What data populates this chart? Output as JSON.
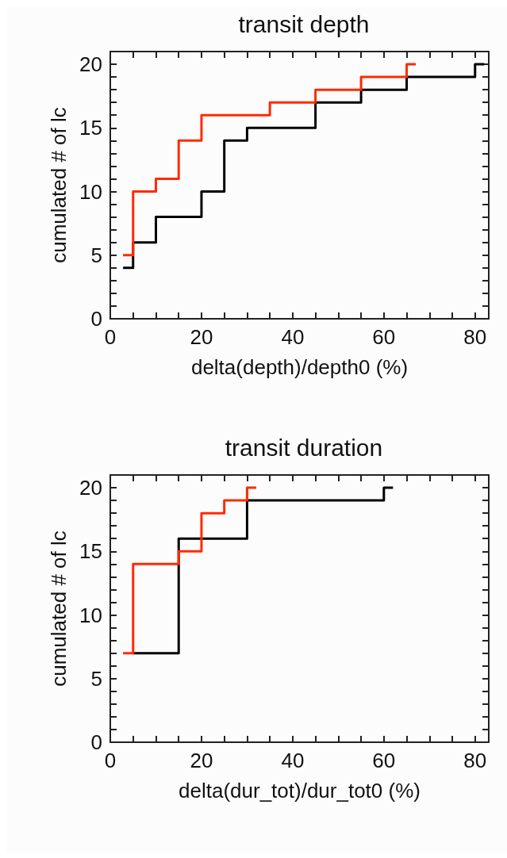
{
  "chart_data": [
    {
      "type": "step",
      "title": "transit depth",
      "xlabel": "delta(depth)/depth0 (%)",
      "ylabel": "cumulated # of lc",
      "xlim": [
        0,
        83
      ],
      "ylim": [
        0,
        21
      ],
      "xticks": [
        0,
        {
          "value": 5,
          "label": null
        },
        {
          "value": 10,
          "label": null
        },
        {
          "value": 15,
          "label": null
        },
        20,
        {
          "value": 25,
          "label": null
        },
        {
          "value": 30,
          "label": null
        },
        {
          "value": 35,
          "label": null
        },
        40,
        {
          "value": 45,
          "label": null
        },
        {
          "value": 50,
          "label": null
        },
        {
          "value": 55,
          "label": null
        },
        60,
        {
          "value": 65,
          "label": null
        },
        {
          "value": 70,
          "label": null
        },
        {
          "value": 75,
          "label": null
        },
        80
      ],
      "yticks": [
        0,
        {
          "value": 1,
          "label": null
        },
        {
          "value": 2,
          "label": null
        },
        {
          "value": 3,
          "label": null
        },
        {
          "value": 4,
          "label": null
        },
        5,
        {
          "value": 6,
          "label": null
        },
        {
          "value": 7,
          "label": null
        },
        {
          "value": 8,
          "label": null
        },
        {
          "value": 9,
          "label": null
        },
        10,
        {
          "value": 11,
          "label": null
        },
        {
          "value": 12,
          "label": null
        },
        {
          "value": 13,
          "label": null
        },
        {
          "value": 14,
          "label": null
        },
        15,
        {
          "value": 16,
          "label": null
        },
        {
          "value": 17,
          "label": null
        },
        {
          "value": 18,
          "label": null
        },
        {
          "value": 19,
          "label": null
        },
        20
      ],
      "series": [
        {
          "color": "#000000",
          "x": [
            2.8,
            5,
            10,
            20,
            25,
            30,
            45,
            55,
            65,
            80,
            82
          ],
          "values": [
            4,
            6,
            8,
            10,
            14,
            15,
            17,
            18,
            19,
            20,
            20
          ]
        },
        {
          "color": "#ff2a00",
          "x": [
            2.8,
            5,
            10,
            15,
            20,
            35,
            45,
            55,
            65,
            67
          ],
          "values": [
            5,
            10,
            11,
            14,
            16,
            17,
            18,
            19,
            20,
            20
          ]
        }
      ]
    },
    {
      "type": "step",
      "title": "transit duration",
      "xlabel": "delta(dur_tot)/dur_tot0 (%)",
      "ylabel": "cumulated # of lc",
      "xlim": [
        0,
        83
      ],
      "ylim": [
        0,
        21
      ],
      "xticks": [
        0,
        {
          "value": 5,
          "label": null
        },
        {
          "value": 10,
          "label": null
        },
        {
          "value": 15,
          "label": null
        },
        20,
        {
          "value": 25,
          "label": null
        },
        {
          "value": 30,
          "label": null
        },
        {
          "value": 35,
          "label": null
        },
        40,
        {
          "value": 45,
          "label": null
        },
        {
          "value": 50,
          "label": null
        },
        {
          "value": 55,
          "label": null
        },
        60,
        {
          "value": 65,
          "label": null
        },
        {
          "value": 70,
          "label": null
        },
        {
          "value": 75,
          "label": null
        },
        80
      ],
      "yticks": [
        0,
        {
          "value": 1,
          "label": null
        },
        {
          "value": 2,
          "label": null
        },
        {
          "value": 3,
          "label": null
        },
        {
          "value": 4,
          "label": null
        },
        5,
        {
          "value": 6,
          "label": null
        },
        {
          "value": 7,
          "label": null
        },
        {
          "value": 8,
          "label": null
        },
        {
          "value": 9,
          "label": null
        },
        10,
        {
          "value": 11,
          "label": null
        },
        {
          "value": 12,
          "label": null
        },
        {
          "value": 13,
          "label": null
        },
        {
          "value": 14,
          "label": null
        },
        15,
        {
          "value": 16,
          "label": null
        },
        {
          "value": 17,
          "label": null
        },
        {
          "value": 18,
          "label": null
        },
        {
          "value": 19,
          "label": null
        },
        20
      ],
      "series": [
        {
          "color": "#000000",
          "x": [
            5,
            15,
            30,
            60,
            62
          ],
          "values": [
            7,
            16,
            19,
            20,
            20
          ]
        },
        {
          "color": "#ff2a00",
          "x": [
            2.8,
            5,
            15,
            20,
            25,
            30,
            32
          ],
          "values": [
            7,
            14,
            15,
            18,
            19,
            20,
            20
          ]
        }
      ]
    }
  ]
}
